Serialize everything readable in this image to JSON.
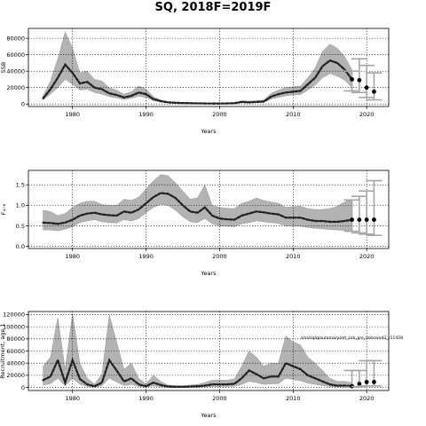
{
  "figure": {
    "title": "SQ, 2018F=2019F"
  },
  "chart_data": [
    {
      "type": "line",
      "xlabel": "Years",
      "ylabel": "SSB",
      "xlim": [
        1974,
        2023
      ],
      "ylim": [
        -3000,
        92000
      ],
      "xticks": [
        1980,
        1990,
        2000,
        2010,
        2020
      ],
      "yticks": [
        0,
        20000,
        40000,
        60000,
        80000
      ],
      "ytick_labels": [
        "0",
        "20000",
        "40000",
        "60000",
        "80000"
      ],
      "grid": true,
      "years": [
        1976,
        1977,
        1978,
        1979,
        1980,
        1981,
        1982,
        1983,
        1984,
        1985,
        1986,
        1987,
        1988,
        1989,
        1990,
        1991,
        1992,
        1993,
        1994,
        1995,
        1996,
        1997,
        1998,
        1999,
        2000,
        2001,
        2002,
        2003,
        2004,
        2005,
        2006,
        2007,
        2008,
        2009,
        2010,
        2011,
        2012,
        2013,
        2014,
        2015,
        2016,
        2017,
        2018
      ],
      "estimate": [
        7000,
        18000,
        32000,
        48000,
        38000,
        25000,
        27000,
        20000,
        18000,
        13000,
        11000,
        8000,
        10000,
        14000,
        12000,
        6000,
        3500,
        2000,
        1500,
        1200,
        1000,
        800,
        700,
        600,
        600,
        700,
        1000,
        2500,
        2000,
        2500,
        3000,
        9000,
        12000,
        14000,
        15000,
        16000,
        24000,
        32000,
        46000,
        53000,
        50000,
        42000,
        30000
      ],
      "upper": [
        10000,
        28000,
        55000,
        88000,
        68000,
        38000,
        40000,
        30000,
        28000,
        20000,
        17000,
        12000,
        15000,
        22000,
        18000,
        9000,
        5000,
        3000,
        2500,
        2000,
        1800,
        1500,
        1300,
        1100,
        1100,
        1300,
        1800,
        4000,
        3500,
        4000,
        5000,
        13000,
        17000,
        20000,
        21000,
        22000,
        32000,
        44000,
        64000,
        73000,
        68000,
        58000,
        42000
      ],
      "lower": [
        5000,
        12000,
        20000,
        30000,
        24000,
        17000,
        18000,
        14000,
        12000,
        9000,
        7500,
        5500,
        7000,
        9500,
        8000,
        4000,
        2500,
        1400,
        1000,
        800,
        600,
        500,
        400,
        350,
        350,
        450,
        700,
        1800,
        1300,
        1700,
        2000,
        6000,
        8000,
        10000,
        11000,
        11500,
        17000,
        23000,
        32000,
        37000,
        34000,
        29000,
        20000
      ],
      "forecast": {
        "years": [
          2018,
          2019,
          2020,
          2021
        ],
        "points": [
          30000,
          29000,
          20000,
          15000
        ],
        "lower": [
          16000,
          14000,
          8000,
          5000
        ],
        "upper": [
          40000,
          55000,
          47000,
          38000
        ]
      }
    },
    {
      "type": "line",
      "xlabel": "Years",
      "ylabel": "F₄₋₈",
      "xlim": [
        1974,
        2023
      ],
      "ylim": [
        -0.05,
        1.85
      ],
      "xticks": [
        1980,
        1990,
        2000,
        2010,
        2020
      ],
      "yticks": [
        0.0,
        0.5,
        1.0,
        1.5
      ],
      "ytick_labels": [
        "0.0",
        "0.5",
        "1.0",
        "1.5"
      ],
      "grid": true,
      "years": [
        1976,
        1977,
        1978,
        1979,
        1980,
        1981,
        1982,
        1983,
        1984,
        1985,
        1986,
        1987,
        1988,
        1989,
        1990,
        1991,
        1992,
        1993,
        1994,
        1995,
        1996,
        1997,
        1998,
        1999,
        2000,
        2001,
        2002,
        2003,
        2004,
        2005,
        2006,
        2007,
        2008,
        2009,
        2010,
        2011,
        2012,
        2013,
        2014,
        2015,
        2016,
        2017,
        2018
      ],
      "estimate": [
        0.58,
        0.57,
        0.55,
        0.58,
        0.65,
        0.75,
        0.8,
        0.82,
        0.78,
        0.76,
        0.75,
        0.85,
        0.82,
        0.9,
        1.05,
        1.2,
        1.3,
        1.28,
        1.18,
        1.0,
        0.85,
        0.82,
        0.95,
        0.75,
        0.68,
        0.66,
        0.65,
        0.75,
        0.8,
        0.85,
        0.83,
        0.8,
        0.78,
        0.7,
        0.7,
        0.7,
        0.65,
        0.62,
        0.62,
        0.6,
        0.6,
        0.62,
        0.65
      ],
      "upper": [
        0.88,
        0.85,
        0.75,
        0.8,
        0.95,
        1.05,
        1.1,
        1.1,
        1.02,
        1.0,
        1.0,
        1.15,
        1.12,
        1.2,
        1.4,
        1.6,
        1.75,
        1.72,
        1.55,
        1.35,
        1.15,
        1.18,
        1.5,
        1.0,
        0.95,
        0.93,
        0.92,
        1.05,
        1.1,
        1.18,
        1.12,
        1.08,
        1.05,
        0.95,
        0.97,
        0.98,
        0.92,
        0.9,
        0.9,
        0.92,
        0.98,
        1.08,
        1.15
      ],
      "lower": [
        0.4,
        0.4,
        0.38,
        0.42,
        0.48,
        0.58,
        0.62,
        0.65,
        0.6,
        0.58,
        0.57,
        0.65,
        0.62,
        0.68,
        0.82,
        0.95,
        1.02,
        1.0,
        0.88,
        0.72,
        0.6,
        0.58,
        0.68,
        0.55,
        0.5,
        0.49,
        0.48,
        0.55,
        0.58,
        0.62,
        0.6,
        0.58,
        0.56,
        0.5,
        0.5,
        0.49,
        0.46,
        0.44,
        0.43,
        0.41,
        0.4,
        0.39,
        0.38
      ],
      "forecast": {
        "years": [
          2018,
          2019,
          2020,
          2021
        ],
        "points": [
          0.65,
          0.65,
          0.65,
          0.65
        ],
        "lower": [
          0.37,
          0.33,
          0.3,
          0.27
        ],
        "upper": [
          1.13,
          1.22,
          1.35,
          1.6
        ]
      }
    },
    {
      "type": "line",
      "xlabel": "Years",
      "ylabel": "Recruitment, age 1",
      "annotation": "s/ss/sq/q/summary/ret_ssb_grs_removed2_r11428",
      "xlim": [
        1974,
        2023
      ],
      "ylim": [
        -5000,
        125000
      ],
      "xticks": [
        1980,
        1990,
        2000,
        2010,
        2020
      ],
      "yticks": [
        0,
        20000,
        40000,
        60000,
        80000,
        100000,
        120000
      ],
      "ytick_labels": [
        "0",
        "20000",
        "40000",
        "60000",
        "80000",
        "100000",
        "120000"
      ],
      "grid": true,
      "years": [
        1976,
        1977,
        1978,
        1979,
        1980,
        1981,
        1982,
        1983,
        1984,
        1985,
        1986,
        1987,
        1988,
        1989,
        1990,
        1991,
        1992,
        1993,
        1994,
        1995,
        1996,
        1997,
        1998,
        1999,
        2000,
        2001,
        2002,
        2003,
        2004,
        2005,
        2006,
        2007,
        2008,
        2009,
        2010,
        2011,
        2012,
        2013,
        2014,
        2015,
        2016,
        2017,
        2018
      ],
      "estimate": [
        12000,
        18000,
        45000,
        8000,
        45000,
        14000,
        5000,
        2000,
        8000,
        45000,
        28000,
        10000,
        15000,
        5000,
        2000,
        8000,
        4000,
        1500,
        1000,
        1000,
        1500,
        2000,
        3000,
        5000,
        5000,
        5000,
        6000,
        15000,
        28000,
        22000,
        15000,
        18000,
        18000,
        40000,
        35000,
        30000,
        20000,
        15000,
        10000,
        5000,
        3000,
        3000,
        2000
      ],
      "upper": [
        35000,
        50000,
        115000,
        30000,
        122000,
        40000,
        15000,
        6000,
        22000,
        120000,
        75000,
        30000,
        40000,
        15000,
        6000,
        20000,
        10000,
        4000,
        3000,
        3000,
        4000,
        5000,
        8000,
        12000,
        12000,
        12000,
        14000,
        35000,
        60000,
        50000,
        35000,
        40000,
        40000,
        85000,
        75000,
        70000,
        50000,
        40000,
        28000,
        15000,
        10000,
        10000,
        8000
      ],
      "lower": [
        4000,
        6000,
        15000,
        2500,
        15000,
        5000,
        1500,
        600,
        2500,
        15000,
        9000,
        3000,
        5000,
        1500,
        600,
        2500,
        1200,
        500,
        300,
        300,
        500,
        600,
        1000,
        1500,
        1500,
        1500,
        2000,
        5000,
        10000,
        8000,
        5000,
        6000,
        6000,
        15000,
        13000,
        11000,
        7000,
        5000,
        3000,
        1500,
        900,
        900,
        600
      ],
      "forecast": {
        "years": [
          2018,
          2019,
          2020,
          2021
        ],
        "points": [
          2000,
          6000,
          9000,
          9000
        ],
        "lower": [
          600,
          1500,
          2500,
          2500
        ],
        "upper": [
          28000,
          28000,
          44000,
          44000
        ]
      }
    }
  ]
}
